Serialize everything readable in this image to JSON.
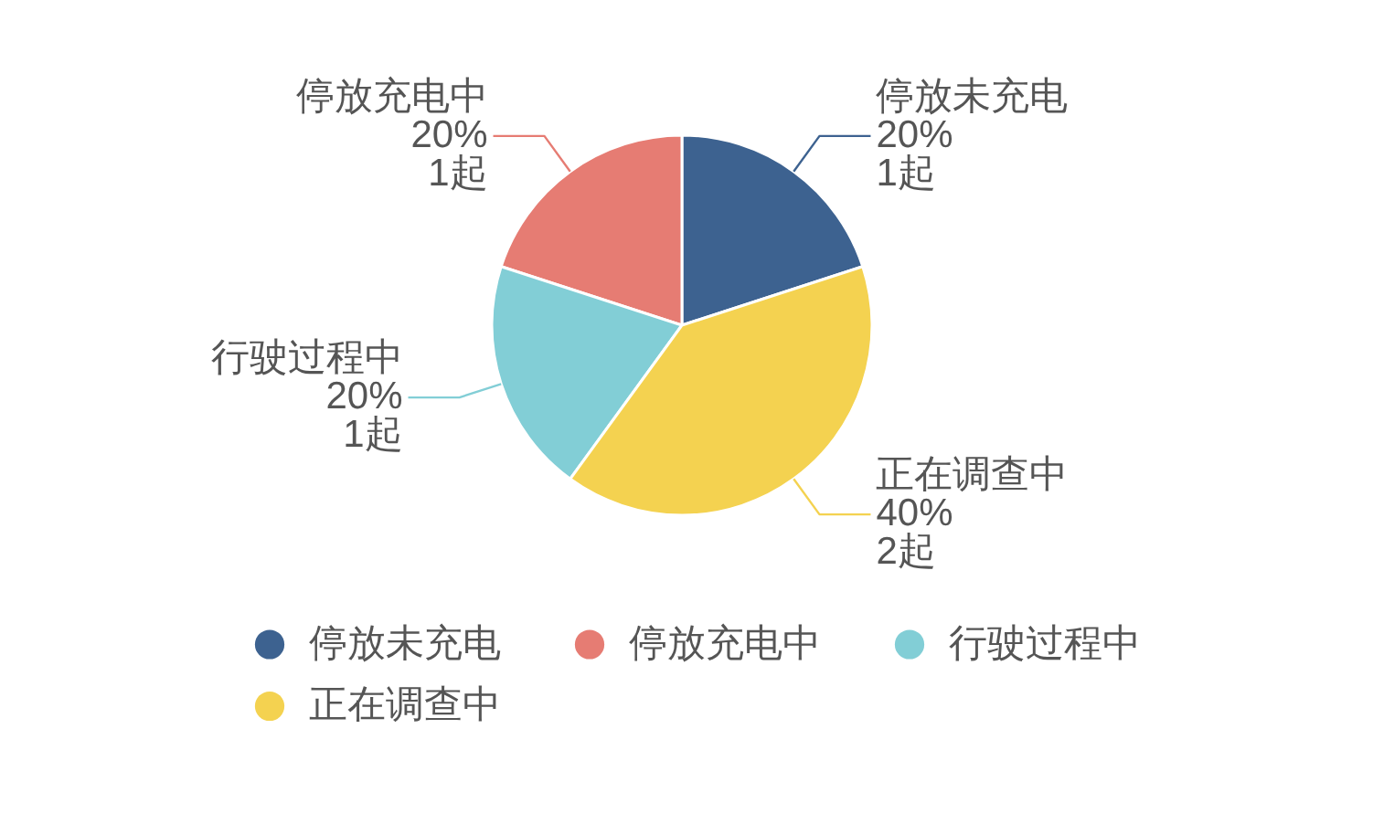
{
  "chart_data": {
    "type": "pie",
    "categories": [
      "停放未充电",
      "停放充电中",
      "行驶过程中",
      "正在调查中"
    ],
    "values": [
      1,
      1,
      1,
      2
    ],
    "colors": [
      "#3d6290",
      "#e67c73",
      "#82ced6",
      "#f4d250"
    ],
    "value_labels": [
      "20%\n1起",
      "20%\n1起",
      "20%\n1起",
      "40%\n2起"
    ],
    "legend": "bottom"
  }
}
